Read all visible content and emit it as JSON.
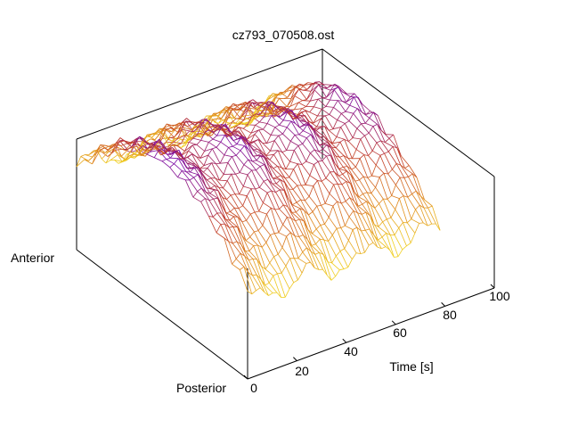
{
  "chart_data": {
    "type": "surface",
    "title": "cz793_070508.ost",
    "xlabel": "Time [s]",
    "y_end_labels": [
      "Anterior",
      "Posterior"
    ],
    "x_ticks": [
      "0",
      "20",
      "40",
      "60",
      "80",
      "100"
    ],
    "xlim": [
      0,
      100
    ],
    "grid": false,
    "legend": "none",
    "colormap": [
      "#7a0aa8",
      "#c0392b",
      "#e08a1e",
      "#f0d020"
    ],
    "surface_shape": "wireframe mesh of a positive ridge across the anterior-posterior position, with periodic undulations along time"
  }
}
